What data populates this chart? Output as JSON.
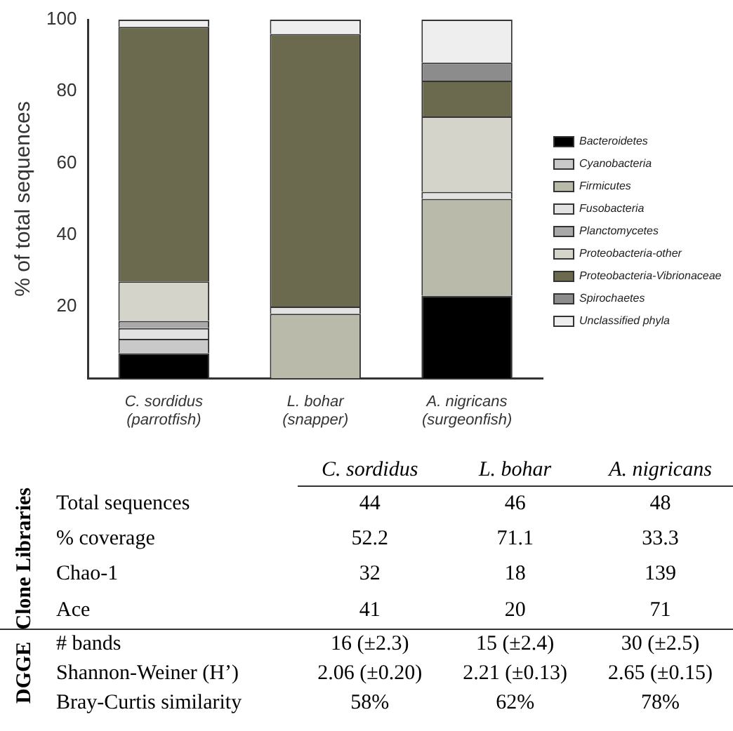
{
  "chart_data": [
    {
      "type": "bar",
      "stacked": true,
      "ylabel": "% of total sequences",
      "categories": [
        "C. sordidus\n(parrotfish)",
        "L. bohar\n(snapper)",
        "A. nigricans\n(surgeonfish)"
      ],
      "ylim": [
        0,
        100
      ],
      "yticks": [
        20,
        40,
        60,
        80,
        100
      ],
      "grid": false,
      "legend": "right",
      "series": [
        {
          "name": "Bacteroidetes",
          "color": "#000000",
          "values": [
            7,
            0,
            23
          ]
        },
        {
          "name": "Cyanobacteria",
          "color": "#c9c9c9",
          "values": [
            4,
            0,
            0
          ]
        },
        {
          "name": "Firmicutes",
          "color": "#b9baa9",
          "values": [
            0,
            18,
            27
          ]
        },
        {
          "name": "Fusobacteria",
          "color": "#e2e2e2",
          "values": [
            3,
            2,
            2
          ]
        },
        {
          "name": "Planctomycetes",
          "color": "#a9a9a9",
          "values": [
            2,
            0,
            0
          ]
        },
        {
          "name": "Proteobacteria-other",
          "color": "#d4d4cb",
          "values": [
            11,
            0,
            21
          ]
        },
        {
          "name": "Proteobacteria-Vibrionaceae",
          "color": "#6b6a4f",
          "values": [
            71,
            76,
            10
          ]
        },
        {
          "name": "Spirochaetes",
          "color": "#8c8c8c",
          "values": [
            0,
            0,
            5
          ]
        },
        {
          "name": "Unclassified phyla",
          "color": "#eeeeee",
          "values": [
            2,
            4,
            12
          ]
        }
      ]
    },
    {
      "type": "other",
      "categories": [
        "C. sordidus",
        "L. bohar",
        "A. nigricans"
      ],
      "y_categories": [
        "Total sequences",
        "% coverage",
        "Chao-1",
        "Ace",
        "# bands",
        "Shannon-Weiner (H’)",
        "Bray-Curtis similarity"
      ],
      "y2_categories": [
        "Clone Libraries",
        null,
        null,
        null,
        "DGGE",
        null,
        null
      ],
      "cell_labels": [
        [
          "44",
          "46",
          "48"
        ],
        [
          "52.2",
          "71.1",
          "33.3"
        ],
        [
          "32",
          "18",
          "139"
        ],
        [
          "41",
          "20",
          "71"
        ],
        [
          "16 (±2.3)",
          "15 (±2.4)",
          "30 (±2.5)"
        ],
        [
          "2.06 (±0.20)",
          "2.21 (±0.13)",
          "2.65 (±0.15)"
        ],
        [
          "58%",
          "62%",
          "78%"
        ]
      ]
    }
  ]
}
